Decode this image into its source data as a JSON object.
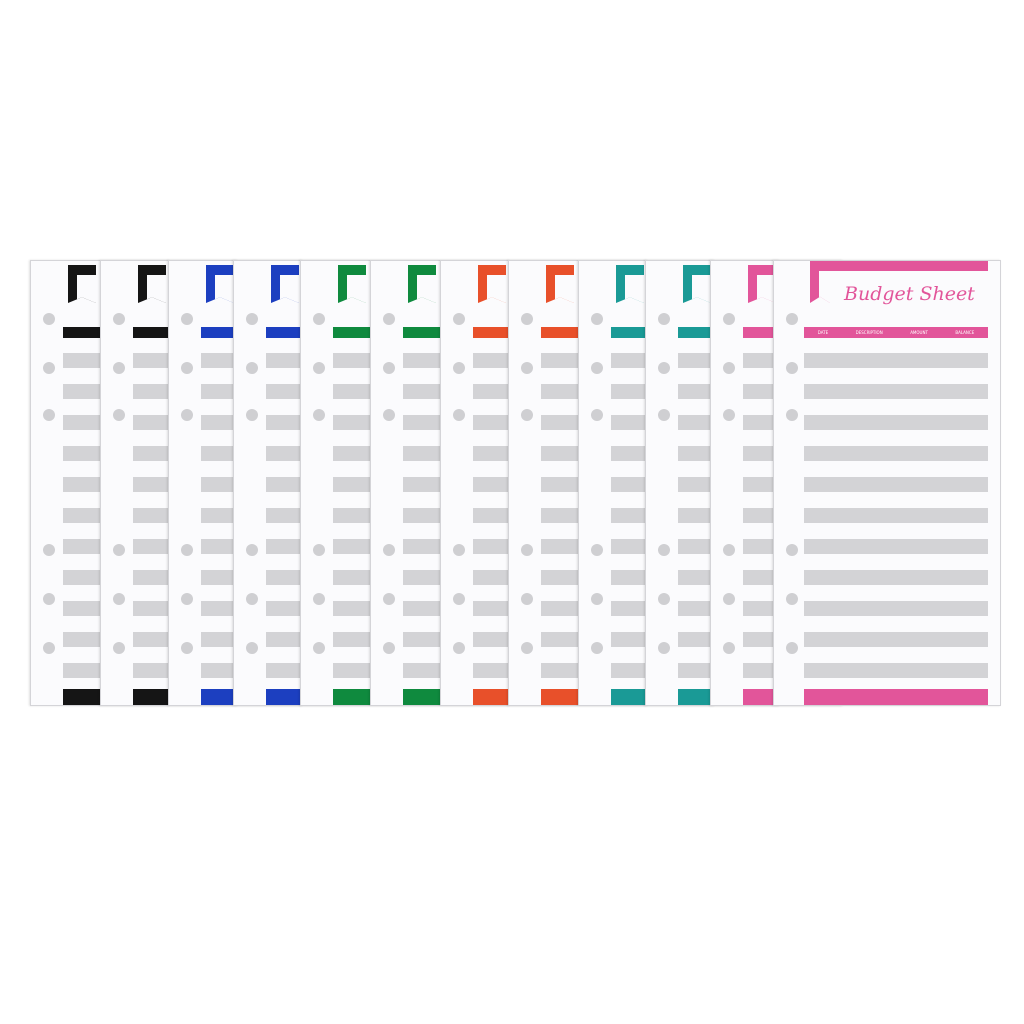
{
  "product": {
    "title": "Budget Sheet",
    "columns": [
      "DATE",
      "DESCRIPTION",
      "AMOUNT",
      "BALANCE"
    ],
    "sheet_colors": [
      "#151515",
      "#151515",
      "#1c3fc0",
      "#1c3fc0",
      "#0f8a3e",
      "#0f8a3e",
      "#e8502a",
      "#e8502a",
      "#1a9a96",
      "#1a9a96",
      "#e2559a",
      "#e2559a"
    ],
    "sheet_count": 12
  }
}
